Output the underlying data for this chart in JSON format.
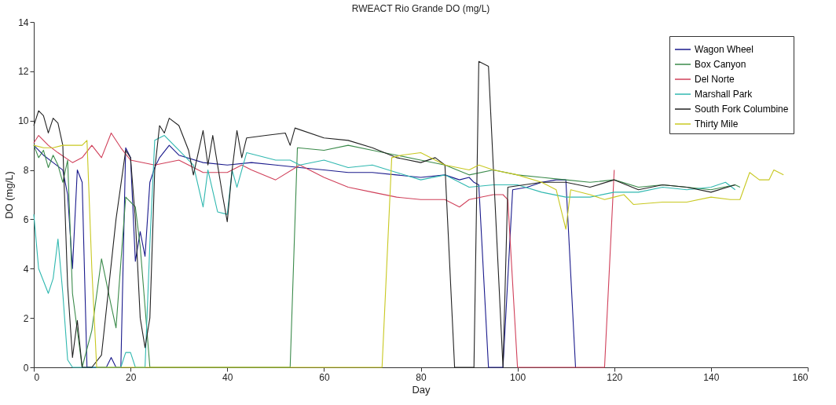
{
  "chart_data": {
    "type": "line",
    "title": "RWEACT Rio Grande DO (mg/L)",
    "xlabel": "Day",
    "ylabel": "DO (mg/L)",
    "xlim": [
      0,
      160
    ],
    "xticks": [
      0,
      20,
      40,
      60,
      80,
      100,
      120,
      140,
      160
    ],
    "ylim": [
      0,
      14
    ],
    "yticks": [
      0,
      2,
      4,
      6,
      8,
      10,
      12,
      14
    ],
    "grid": false,
    "legend": "top right",
    "marker": "none",
    "line_style": "solid",
    "series": [
      {
        "name": "Wagon Wheel",
        "color": "#1a1a8c",
        "x": [
          0,
          2,
          4,
          6,
          7,
          8,
          9,
          10,
          11,
          13,
          15,
          16,
          17,
          18,
          19,
          20,
          21,
          22,
          23,
          24,
          25,
          26,
          28,
          30,
          35,
          40,
          45,
          50,
          55,
          60,
          65,
          70,
          75,
          80,
          85,
          88,
          90,
          91,
          92,
          94,
          96,
          97,
          99,
          102,
          105,
          108,
          110,
          112
        ],
        "values": [
          9.0,
          8.6,
          8.3,
          8.0,
          7.0,
          4.0,
          8.0,
          7.5,
          0,
          0,
          0,
          0.4,
          0,
          0,
          8.9,
          8.5,
          4.3,
          5.5,
          4.5,
          7.5,
          8.1,
          8.5,
          9.0,
          8.6,
          8.3,
          8.2,
          8.3,
          8.2,
          8.1,
          8.0,
          7.9,
          7.9,
          7.8,
          7.7,
          7.8,
          7.6,
          7.7,
          7.5,
          7.4,
          0,
          0,
          0,
          7.2,
          7.3,
          7.5,
          7.6,
          7.6,
          0
        ]
      },
      {
        "name": "Box Canyon",
        "color": "#3a8a4a",
        "x": [
          0,
          1,
          2,
          3,
          4,
          5,
          6,
          7,
          8,
          10,
          12,
          14,
          16,
          17,
          19,
          21,
          22,
          24,
          30,
          40,
          50,
          53,
          54.5,
          60,
          65,
          70,
          75,
          80,
          85,
          90,
          95,
          100,
          105,
          110,
          115,
          120,
          125,
          130,
          135,
          140,
          145,
          146
        ],
        "values": [
          9.0,
          8.5,
          8.8,
          8.1,
          8.6,
          8.2,
          7.5,
          8.4,
          3.0,
          0,
          1.5,
          4.4,
          2.5,
          1.6,
          6.9,
          6.5,
          4.9,
          0,
          0,
          0,
          0,
          0,
          8.9,
          8.8,
          9.0,
          8.8,
          8.6,
          8.4,
          8.2,
          7.8,
          8.0,
          7.8,
          7.7,
          7.6,
          7.5,
          7.6,
          7.3,
          7.4,
          7.3,
          7.2,
          7.4,
          7.3
        ]
      },
      {
        "name": "Del Norte",
        "color": "#d0405a",
        "x": [
          0,
          1,
          3,
          5,
          8,
          10,
          12,
          14,
          16,
          18,
          20,
          25,
          30,
          35,
          40,
          43,
          45,
          50,
          55,
          60,
          65,
          70,
          75,
          80,
          85,
          88,
          90,
          95,
          97,
          98,
          100,
          110,
          118,
          120
        ],
        "values": [
          9.1,
          9.4,
          9.0,
          8.7,
          8.3,
          8.5,
          9.0,
          8.5,
          9.5,
          8.9,
          8.4,
          8.2,
          8.4,
          7.9,
          7.9,
          8.2,
          8.0,
          7.6,
          8.2,
          7.7,
          7.3,
          7.1,
          6.9,
          6.8,
          6.8,
          6.5,
          6.8,
          7.0,
          7.0,
          6.8,
          0,
          0,
          0,
          8.0
        ]
      },
      {
        "name": "Marshall Park",
        "color": "#30b8b0",
        "x": [
          0,
          1,
          3,
          4,
          5,
          6,
          7,
          8,
          18,
          19,
          20,
          21,
          23,
          24,
          25,
          27,
          30,
          33,
          35,
          36,
          38,
          40,
          41,
          42,
          44,
          50,
          53,
          55,
          60,
          65,
          70,
          75,
          80,
          85,
          90,
          95,
          100,
          105,
          110,
          115,
          120,
          125,
          130,
          135,
          140,
          143,
          145
        ],
        "values": [
          6.2,
          4.0,
          3.0,
          3.6,
          5.2,
          3.0,
          0.3,
          0,
          0,
          0.6,
          0.6,
          0,
          0,
          5.0,
          9.2,
          9.4,
          8.8,
          8.2,
          6.5,
          8.0,
          6.3,
          6.2,
          8.0,
          7.3,
          8.7,
          8.4,
          8.4,
          8.2,
          8.4,
          8.1,
          8.2,
          7.9,
          7.6,
          7.8,
          7.3,
          7.4,
          7.4,
          7.1,
          6.9,
          6.9,
          7.1,
          7.1,
          7.3,
          7.2,
          7.3,
          7.5,
          7.2
        ]
      },
      {
        "name": "South Fork Columbine",
        "color": "#222222",
        "x": [
          0,
          1,
          2,
          3,
          4,
          5,
          6,
          7,
          8,
          9,
          10,
          12,
          14,
          17,
          19,
          20,
          21,
          22,
          23,
          24,
          25,
          26,
          27,
          28,
          30,
          32,
          33,
          35,
          36,
          37,
          39,
          40,
          41,
          42,
          43,
          44,
          48,
          52,
          53,
          54,
          60,
          65,
          70,
          75,
          80,
          83,
          85,
          87,
          91,
          92,
          94,
          97,
          98,
          105,
          110,
          115,
          120,
          125,
          130,
          135,
          140,
          145
        ],
        "values": [
          9.8,
          10.4,
          10.2,
          9.5,
          10.1,
          9.9,
          9.0,
          3.3,
          0.4,
          1.9,
          0,
          0,
          0.5,
          6.0,
          8.8,
          8.5,
          6.0,
          2.0,
          0.8,
          2.0,
          8.0,
          9.8,
          9.5,
          10.1,
          9.8,
          8.8,
          7.8,
          9.6,
          8.2,
          9.4,
          7.0,
          5.9,
          8.0,
          9.6,
          8.5,
          9.3,
          9.4,
          9.5,
          9.0,
          9.7,
          9.3,
          9.2,
          8.9,
          8.5,
          8.3,
          8.5,
          8.2,
          0,
          0,
          12.4,
          12.2,
          0,
          7.3,
          7.5,
          7.5,
          7.3,
          7.6,
          7.2,
          7.4,
          7.3,
          7.1,
          7.4
        ]
      },
      {
        "name": "Thirty Mile",
        "color": "#c8c820",
        "x": [
          0,
          2,
          4,
          6,
          8,
          10,
          11,
          12,
          13,
          40,
          72,
          74,
          76,
          80,
          85,
          90,
          92,
          95,
          100,
          105,
          108,
          110,
          111,
          115,
          118,
          120,
          122,
          124,
          130,
          135,
          140,
          144,
          146,
          148,
          150,
          152,
          153,
          155
        ],
        "values": [
          9.0,
          8.9,
          8.9,
          9.0,
          9.0,
          9.0,
          9.2,
          4.0,
          0,
          0,
          0,
          8.5,
          8.6,
          8.7,
          8.2,
          8.0,
          8.2,
          8.0,
          7.8,
          7.5,
          7.2,
          5.6,
          7.2,
          7.0,
          6.8,
          6.9,
          7.0,
          6.6,
          6.7,
          6.7,
          6.9,
          6.8,
          6.8,
          7.9,
          7.6,
          7.6,
          8.0,
          7.8
        ]
      }
    ]
  }
}
